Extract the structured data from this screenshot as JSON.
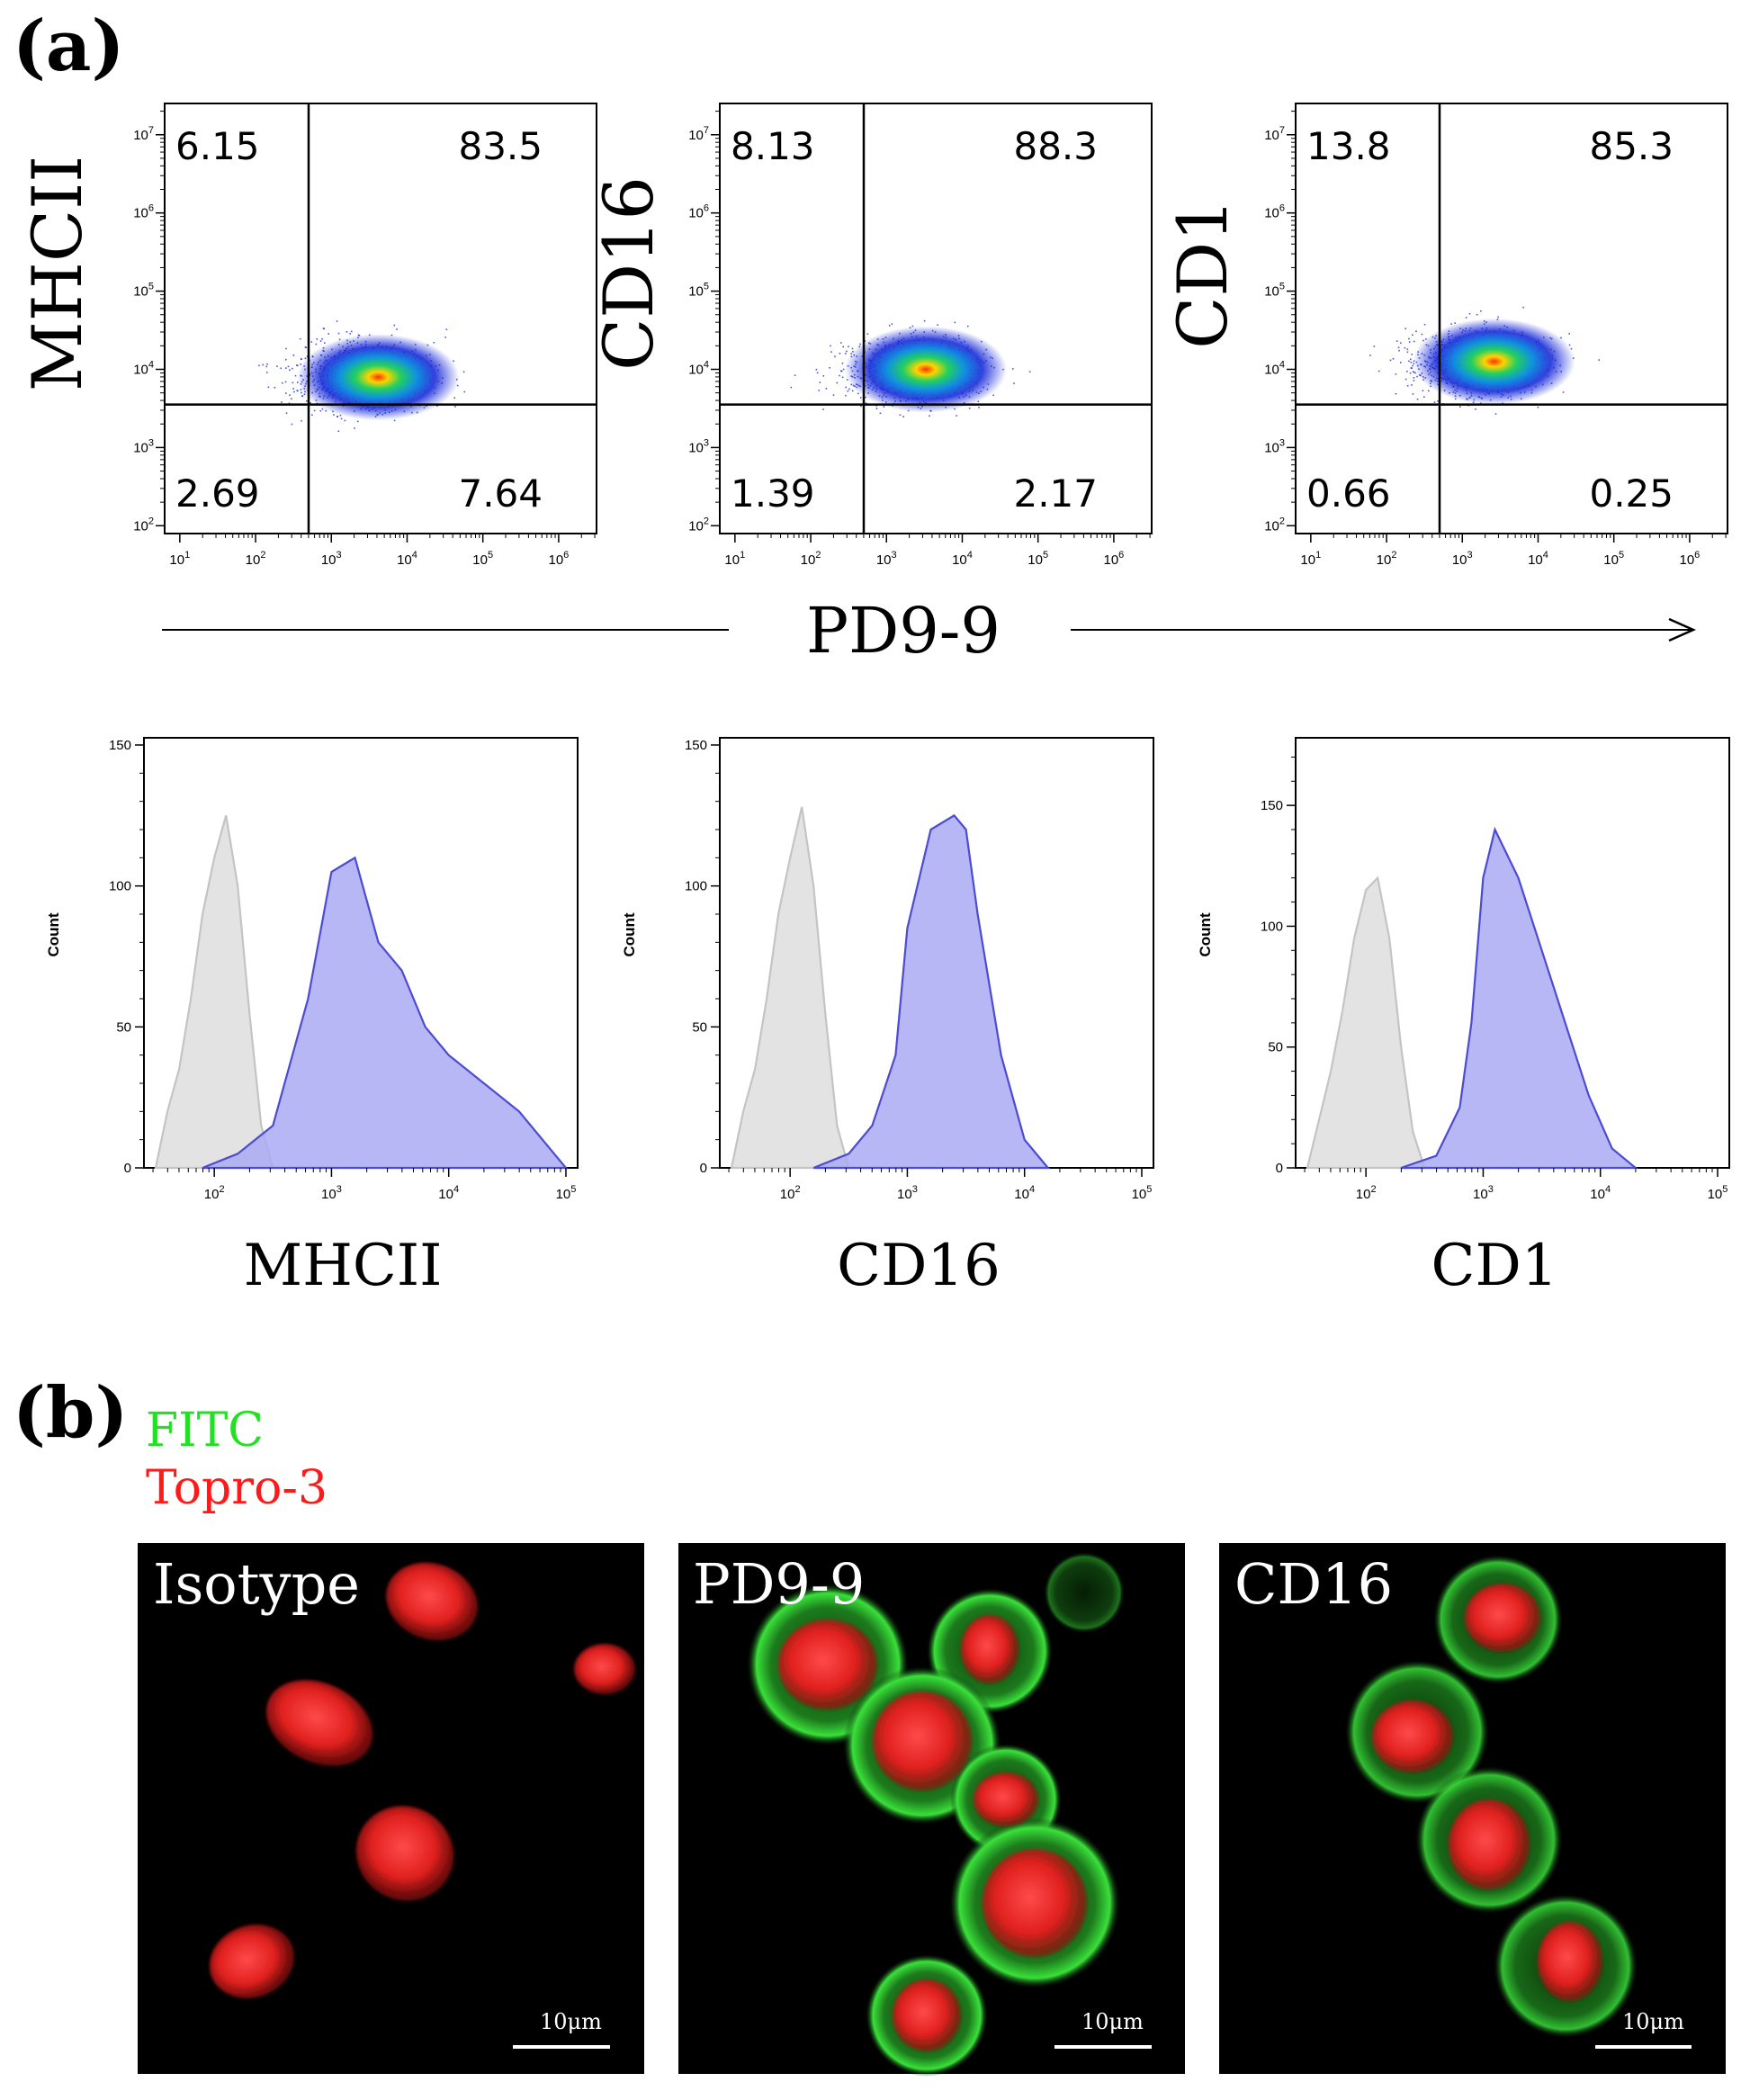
{
  "panel_a_label": "(a)",
  "panel_b_label": "(b)",
  "shared_x_label": "PD9-9",
  "chart_data": [
    {
      "type": "scatter",
      "panel": "a",
      "row": "density-plot",
      "xlabel": "PD9-9",
      "ylabel": "MHCII",
      "x_ticks": [
        "10^1",
        "10^2",
        "10^3",
        "10^4",
        "10^5",
        "10^6"
      ],
      "y_ticks": [
        "10^2",
        "10^3",
        "10^4",
        "10^5",
        "10^6",
        "10^7"
      ],
      "quadrants": {
        "upper_left": "6.15",
        "upper_right": "83.5",
        "lower_left": "2.69",
        "lower_right": "7.64"
      },
      "population_center": {
        "x_log10": 3.5,
        "y_log10": 3.9
      }
    },
    {
      "type": "scatter",
      "panel": "a",
      "row": "density-plot",
      "xlabel": "PD9-9",
      "ylabel": "CD16",
      "x_ticks": [
        "10^1",
        "10^2",
        "10^3",
        "10^4",
        "10^5",
        "10^6"
      ],
      "y_ticks": [
        "10^2",
        "10^3",
        "10^4",
        "10^5",
        "10^6",
        "10^7"
      ],
      "quadrants": {
        "upper_left": "8.13",
        "upper_right": "88.3",
        "lower_left": "1.39",
        "lower_right": "2.17"
      },
      "population_center": {
        "x_log10": 3.4,
        "y_log10": 4.0
      }
    },
    {
      "type": "scatter",
      "panel": "a",
      "row": "density-plot",
      "xlabel": "PD9-9",
      "ylabel": "CD1",
      "x_ticks": [
        "10^1",
        "10^2",
        "10^3",
        "10^4",
        "10^5",
        "10^6"
      ],
      "y_ticks": [
        "10^2",
        "10^3",
        "10^4",
        "10^5",
        "10^6",
        "10^7"
      ],
      "quadrants": {
        "upper_left": "13.8",
        "upper_right": "85.3",
        "lower_left": "0.66",
        "lower_right": "0.25"
      },
      "population_center": {
        "x_log10": 3.3,
        "y_log10": 4.1
      }
    },
    {
      "type": "area",
      "panel": "a",
      "row": "histogram",
      "xlabel": "MHCII",
      "ylabel": "Count",
      "x_ticks": [
        "10^2",
        "10^3",
        "10^4",
        "10^5"
      ],
      "y_ticks": [
        "0",
        "50",
        "100",
        "150"
      ],
      "ylim": [
        0,
        150
      ],
      "series": [
        {
          "role": "isotype",
          "color": "#d9d9d9",
          "x_log10": [
            1.5,
            1.6,
            1.7,
            1.8,
            1.9,
            2.0,
            2.1,
            2.2,
            2.3,
            2.4,
            2.5
          ],
          "y": [
            0,
            20,
            35,
            60,
            90,
            110,
            125,
            100,
            55,
            15,
            0
          ]
        },
        {
          "role": "stained",
          "color": "#aaaaf3",
          "x_log10": [
            1.9,
            2.2,
            2.5,
            2.8,
            3.0,
            3.2,
            3.4,
            3.6,
            3.8,
            4.0,
            4.3,
            4.6,
            4.9,
            5.0
          ],
          "y": [
            0,
            5,
            15,
            60,
            105,
            110,
            80,
            70,
            50,
            40,
            30,
            20,
            5,
            0
          ]
        }
      ]
    },
    {
      "type": "area",
      "panel": "a",
      "row": "histogram",
      "xlabel": "CD16",
      "ylabel": "Count",
      "x_ticks": [
        "10^2",
        "10^3",
        "10^4",
        "10^5"
      ],
      "y_ticks": [
        "0",
        "50",
        "100",
        "150"
      ],
      "ylim": [
        0,
        150
      ],
      "series": [
        {
          "role": "isotype",
          "color": "#d9d9d9",
          "x_log10": [
            1.5,
            1.6,
            1.7,
            1.8,
            1.9,
            2.0,
            2.1,
            2.2,
            2.3,
            2.4,
            2.5
          ],
          "y": [
            0,
            20,
            35,
            60,
            90,
            110,
            128,
            100,
            55,
            15,
            0
          ]
        },
        {
          "role": "stained",
          "color": "#aaaaf3",
          "x_log10": [
            2.2,
            2.5,
            2.7,
            2.9,
            3.0,
            3.2,
            3.4,
            3.5,
            3.6,
            3.8,
            4.0,
            4.2
          ],
          "y": [
            0,
            5,
            15,
            40,
            85,
            120,
            125,
            120,
            90,
            40,
            10,
            0
          ]
        }
      ]
    },
    {
      "type": "area",
      "panel": "a",
      "row": "histogram",
      "xlabel": "CD1",
      "ylabel": "Count",
      "x_ticks": [
        "10^2",
        "10^3",
        "10^4",
        "10^5"
      ],
      "y_ticks": [
        "0",
        "50",
        "100",
        "150"
      ],
      "ylim": [
        0,
        150
      ],
      "series": [
        {
          "role": "isotype",
          "color": "#d9d9d9",
          "x_log10": [
            1.5,
            1.6,
            1.7,
            1.8,
            1.9,
            2.0,
            2.1,
            2.2,
            2.3,
            2.4,
            2.5
          ],
          "y": [
            0,
            20,
            40,
            65,
            95,
            115,
            120,
            95,
            50,
            15,
            0
          ]
        },
        {
          "role": "stained",
          "color": "#aaaaf3",
          "x_log10": [
            2.3,
            2.6,
            2.8,
            2.9,
            3.0,
            3.1,
            3.3,
            3.5,
            3.7,
            3.9,
            4.1,
            4.3
          ],
          "y": [
            0,
            5,
            25,
            60,
            120,
            140,
            120,
            90,
            60,
            30,
            8,
            0
          ]
        }
      ]
    }
  ],
  "panel_b": {
    "legend": [
      {
        "label": "FITC",
        "color": "#22e022"
      },
      {
        "label": "Topro-3",
        "color": "#ff1a1a"
      }
    ],
    "images": [
      {
        "label": "Isotype",
        "scale_bar": "10μm"
      },
      {
        "label": "PD9-9",
        "scale_bar": "10μm"
      },
      {
        "label": "CD16",
        "scale_bar": "10μm"
      }
    ]
  }
}
